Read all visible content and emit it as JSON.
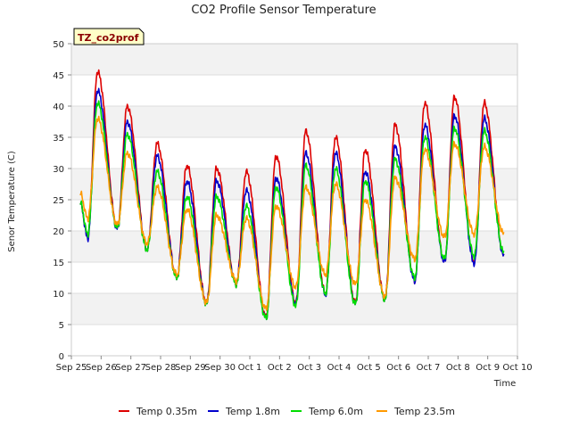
{
  "chart_data": {
    "type": "line",
    "title": "CO2 Profile Sensor Temperature",
    "xlabel": "Time",
    "ylabel": "Senor Temperature (C)",
    "site_label": "TZ_co2prof",
    "xlim": [
      0,
      15
    ],
    "ylim": [
      0,
      50
    ],
    "grid": true,
    "legend_position": "bottom-center",
    "x_ticks": [
      {
        "value": 0,
        "label": "Sep 25"
      },
      {
        "value": 1,
        "label": "Sep 26"
      },
      {
        "value": 2,
        "label": "Sep 27"
      },
      {
        "value": 3,
        "label": "Sep 28"
      },
      {
        "value": 4,
        "label": "Sep 29"
      },
      {
        "value": 5,
        "label": "Sep 30"
      },
      {
        "value": 6,
        "label": "Oct 1"
      },
      {
        "value": 7,
        "label": "Oct 2"
      },
      {
        "value": 8,
        "label": "Oct 3"
      },
      {
        "value": 9,
        "label": "Oct 4"
      },
      {
        "value": 10,
        "label": "Oct 5"
      },
      {
        "value": 11,
        "label": "Oct 6"
      },
      {
        "value": 12,
        "label": "Oct 7"
      },
      {
        "value": 13,
        "label": "Oct 8"
      },
      {
        "value": 14,
        "label": "Oct 9"
      },
      {
        "value": 15,
        "label": "Oct 10"
      }
    ],
    "y_ticks": [
      0,
      5,
      10,
      15,
      20,
      25,
      30,
      35,
      40,
      45,
      50
    ],
    "daily_profile": {
      "note": "Each day: minimum reached near dawn, maximum in early afternoon (day fractions).",
      "min_phase": 0.25,
      "max_phase": 0.58
    },
    "series": [
      {
        "name": "Temp 0.35m",
        "color": "#dd0000",
        "start": 24.5,
        "daily_min": [
          19.0,
          20.5,
          17.0,
          12.5,
          8.5,
          11.5,
          6.2,
          8.5,
          10.0,
          8.5,
          9.0,
          12.0,
          15.0,
          15.0,
          16.0
        ],
        "daily_max": [
          45.5,
          40.0,
          34.0,
          30.5,
          30.0,
          29.5,
          32.0,
          36.0,
          35.0,
          33.0,
          37.0,
          40.5,
          41.5,
          40.5
        ]
      },
      {
        "name": "Temp 1.8m",
        "color": "#0000cc",
        "start": 24.5,
        "daily_min": [
          18.8,
          20.3,
          17.0,
          12.5,
          8.3,
          11.5,
          6.0,
          8.3,
          9.8,
          8.3,
          9.0,
          12.0,
          15.0,
          14.8,
          16.0
        ],
        "daily_max": [
          42.5,
          37.5,
          32.0,
          28.0,
          28.0,
          26.5,
          28.5,
          32.5,
          32.5,
          29.5,
          33.5,
          37.0,
          38.5,
          38.0
        ]
      },
      {
        "name": "Temp 6.0m",
        "color": "#00dd00",
        "start": 24.5,
        "daily_min": [
          19.5,
          20.5,
          17.0,
          12.5,
          8.3,
          11.5,
          6.0,
          8.0,
          10.0,
          8.3,
          9.0,
          12.5,
          15.5,
          16.0,
          16.5
        ],
        "daily_max": [
          40.5,
          35.5,
          29.5,
          25.5,
          25.5,
          24.0,
          27.0,
          30.5,
          30.0,
          28.0,
          31.5,
          35.0,
          36.5,
          36.0
        ]
      },
      {
        "name": "Temp 23.5m",
        "color": "#ff9900",
        "start": 26.0,
        "daily_min": [
          22.0,
          21.0,
          18.0,
          13.0,
          8.5,
          12.0,
          7.5,
          11.0,
          13.0,
          11.5,
          9.5,
          15.5,
          19.0,
          19.5,
          19.5
        ],
        "daily_max": [
          38.0,
          32.5,
          27.0,
          23.5,
          22.5,
          22.0,
          24.0,
          27.0,
          27.5,
          25.0,
          28.5,
          33.0,
          34.0,
          33.5
        ]
      }
    ]
  }
}
